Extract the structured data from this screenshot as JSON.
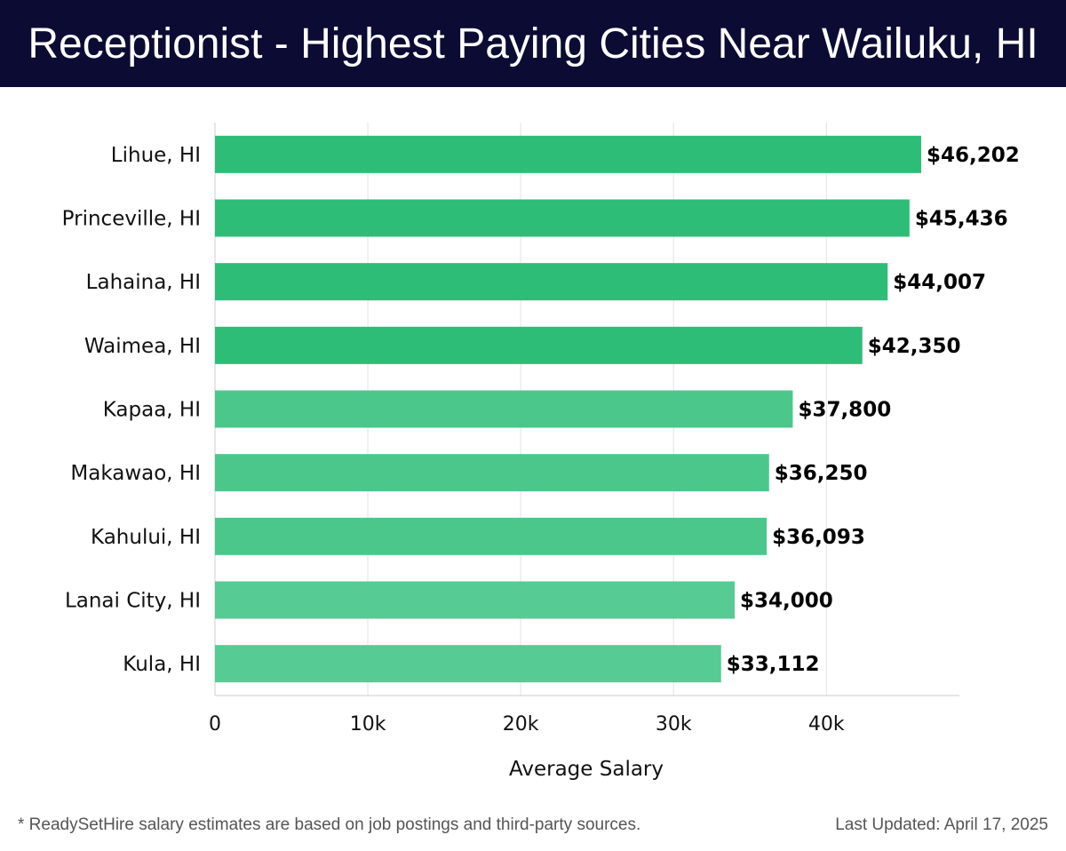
{
  "header": {
    "title": "Receptionist - Highest Paying Cities Near Wailuku, HI"
  },
  "chart_data": {
    "type": "bar",
    "orientation": "horizontal",
    "categories": [
      "Lihue, HI",
      "Princeville, HI",
      "Lahaina, HI",
      "Waimea, HI",
      "Kapaa, HI",
      "Makawao, HI",
      "Kahului, HI",
      "Lanai City, HI",
      "Kula, HI"
    ],
    "values": [
      46202,
      45436,
      44007,
      42350,
      37800,
      36250,
      36093,
      34000,
      33112
    ],
    "value_labels": [
      "$46,202",
      "$45,436",
      "$44,007",
      "$42,350",
      "$37,800",
      "$36,250",
      "$36,093",
      "$34,000",
      "$33,112"
    ],
    "bar_colors": [
      "#2dbd77",
      "#2dbd77",
      "#2dbd77",
      "#2dbd77",
      "#4cc78c",
      "#4cc78c",
      "#4cc78c",
      "#56cb93",
      "#56cb93"
    ],
    "xlabel": "Average Salary",
    "ylabel": "",
    "xlim": [
      0,
      48700
    ],
    "xticks": [
      0,
      10000,
      20000,
      30000,
      40000
    ],
    "xtick_labels": [
      "0",
      "10k",
      "20k",
      "30k",
      "40k"
    ],
    "grid": "vertical"
  },
  "footer": {
    "note": "* ReadySetHire salary estimates are based on job postings and third-party sources.",
    "updated": "Last Updated: April 17, 2025"
  }
}
